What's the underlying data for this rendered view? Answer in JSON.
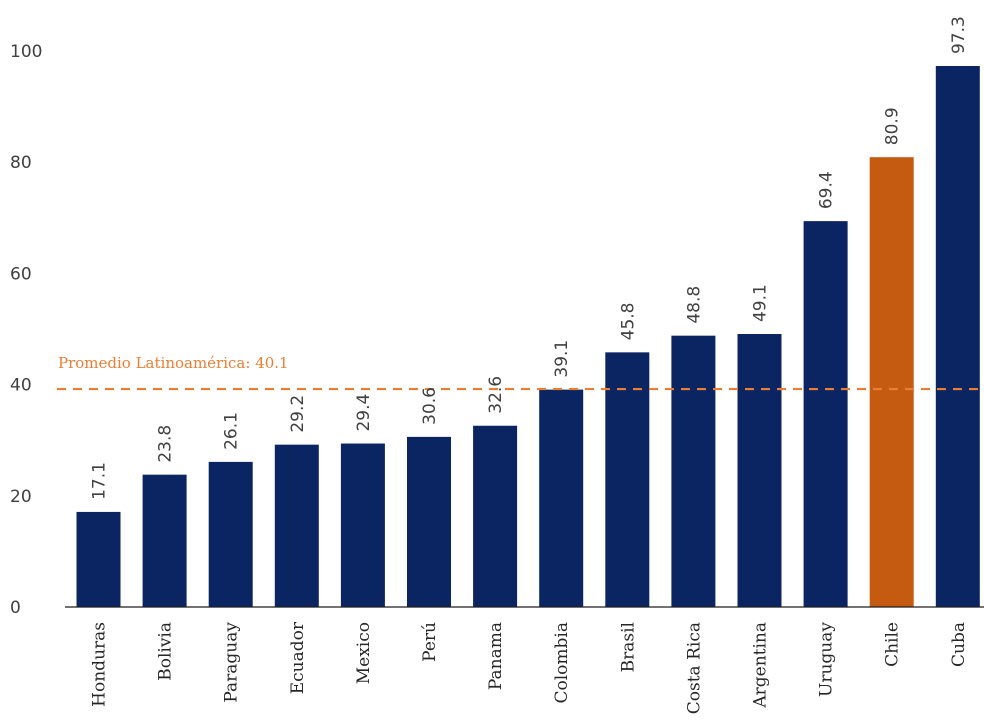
{
  "chart_data": {
    "type": "bar",
    "categories": [
      "Honduras",
      "Bolivia",
      "Paraguay",
      "Ecuador",
      "Mexico",
      "Perú",
      "Panama",
      "Colombia",
      "Brasil",
      "Costa Rica",
      "Argentina",
      "Uruguay",
      "Chile",
      "Cuba"
    ],
    "values": [
      17.1,
      23.8,
      26.1,
      29.2,
      29.4,
      30.6,
      32.6,
      39.1,
      45.8,
      48.8,
      49.1,
      69.4,
      80.9,
      97.3
    ],
    "value_labels": [
      "17.1",
      "23.8",
      "26.1",
      "29.2",
      "29.4",
      "30.6",
      "32.6",
      "39.1",
      "45.8",
      "48.8",
      "49.1",
      "69.4",
      "80.9",
      "97.3"
    ],
    "y_ticks": [
      "0",
      "20",
      "40",
      "60",
      "80",
      "100"
    ],
    "ylim": [
      0,
      100
    ],
    "highlight_category": "Chile",
    "average": {
      "label": "Promedio Latinoamérica: 40.1",
      "value": 40.1
    },
    "colors": {
      "bar": "#0b2462",
      "highlight": "#c55a11",
      "average": "#ed7d31",
      "axis": "#1f1f1f"
    }
  }
}
